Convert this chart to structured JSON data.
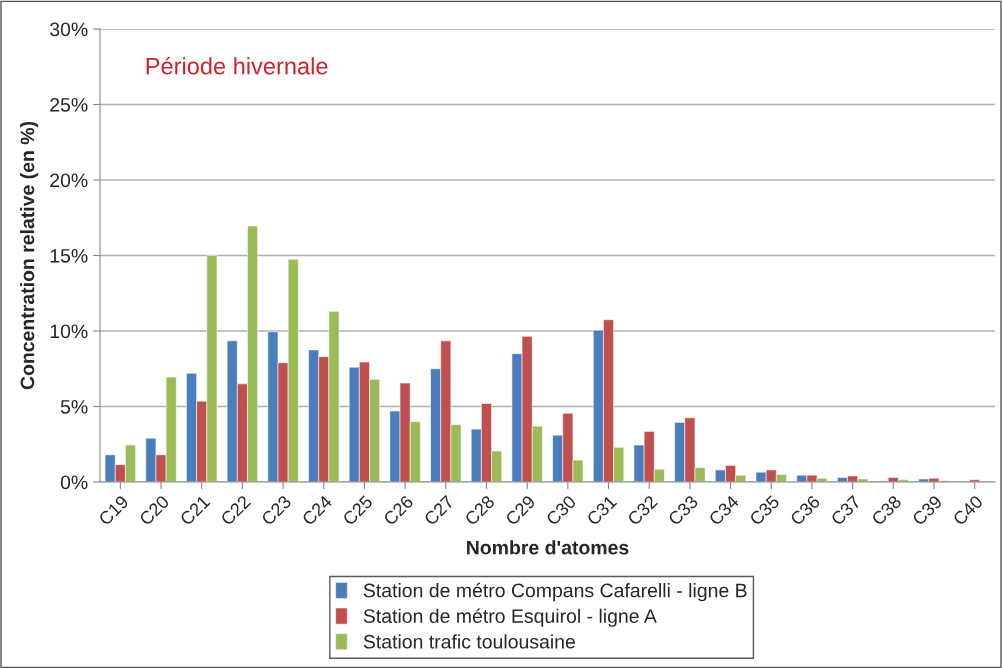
{
  "chart_data": {
    "type": "bar",
    "xlabel": "Nombre d'atomes",
    "ylabel": "Concentration relative (en %)",
    "annotations": [
      "Période hivernale"
    ],
    "categories": [
      "C19",
      "C20",
      "C21",
      "C22",
      "C23",
      "C24",
      "C25",
      "C26",
      "C27",
      "C28",
      "C29",
      "C30",
      "C31",
      "C32",
      "C33",
      "C34",
      "C35",
      "C36",
      "C37",
      "C38",
      "C39",
      "C40"
    ],
    "series": [
      {
        "name": "Station de métro Compans Cafarelli - ligne B",
        "color": "#4a7ebb",
        "values": [
          1.8,
          2.9,
          7.2,
          9.35,
          9.95,
          8.75,
          7.6,
          4.7,
          7.5,
          3.5,
          8.5,
          3.1,
          10.05,
          2.45,
          3.95,
          0.8,
          0.65,
          0.45,
          0.3,
          0.07,
          0.2,
          null
        ]
      },
      {
        "name": "Station de métro Esquirol - ligne A",
        "color": "#c0504d",
        "values": [
          1.15,
          1.8,
          5.35,
          6.5,
          7.9,
          8.3,
          7.95,
          6.55,
          9.35,
          5.2,
          9.65,
          4.55,
          10.75,
          3.35,
          4.25,
          1.1,
          0.8,
          0.45,
          0.4,
          0.3,
          0.25,
          0.15
        ]
      },
      {
        "name": "Station trafic toulousaine",
        "color": "#9bbb59",
        "values": [
          2.45,
          6.95,
          15.0,
          16.95,
          14.75,
          11.3,
          6.8,
          4.0,
          3.8,
          2.05,
          3.7,
          1.45,
          2.3,
          0.85,
          0.95,
          0.45,
          0.5,
          0.25,
          0.2,
          0.15,
          0.1,
          null
        ]
      }
    ],
    "ylim": [
      0,
      30
    ],
    "yticks": [
      {
        "value": 0,
        "label": "0%"
      },
      {
        "value": 5,
        "label": "5%"
      },
      {
        "value": 10,
        "label": "10%"
      },
      {
        "value": 15,
        "label": "15%"
      },
      {
        "value": 20,
        "label": "20%"
      },
      {
        "value": 25,
        "label": "25%"
      },
      {
        "value": 30,
        "label": "30%"
      }
    ],
    "grid": "y",
    "legend": "bottom"
  }
}
